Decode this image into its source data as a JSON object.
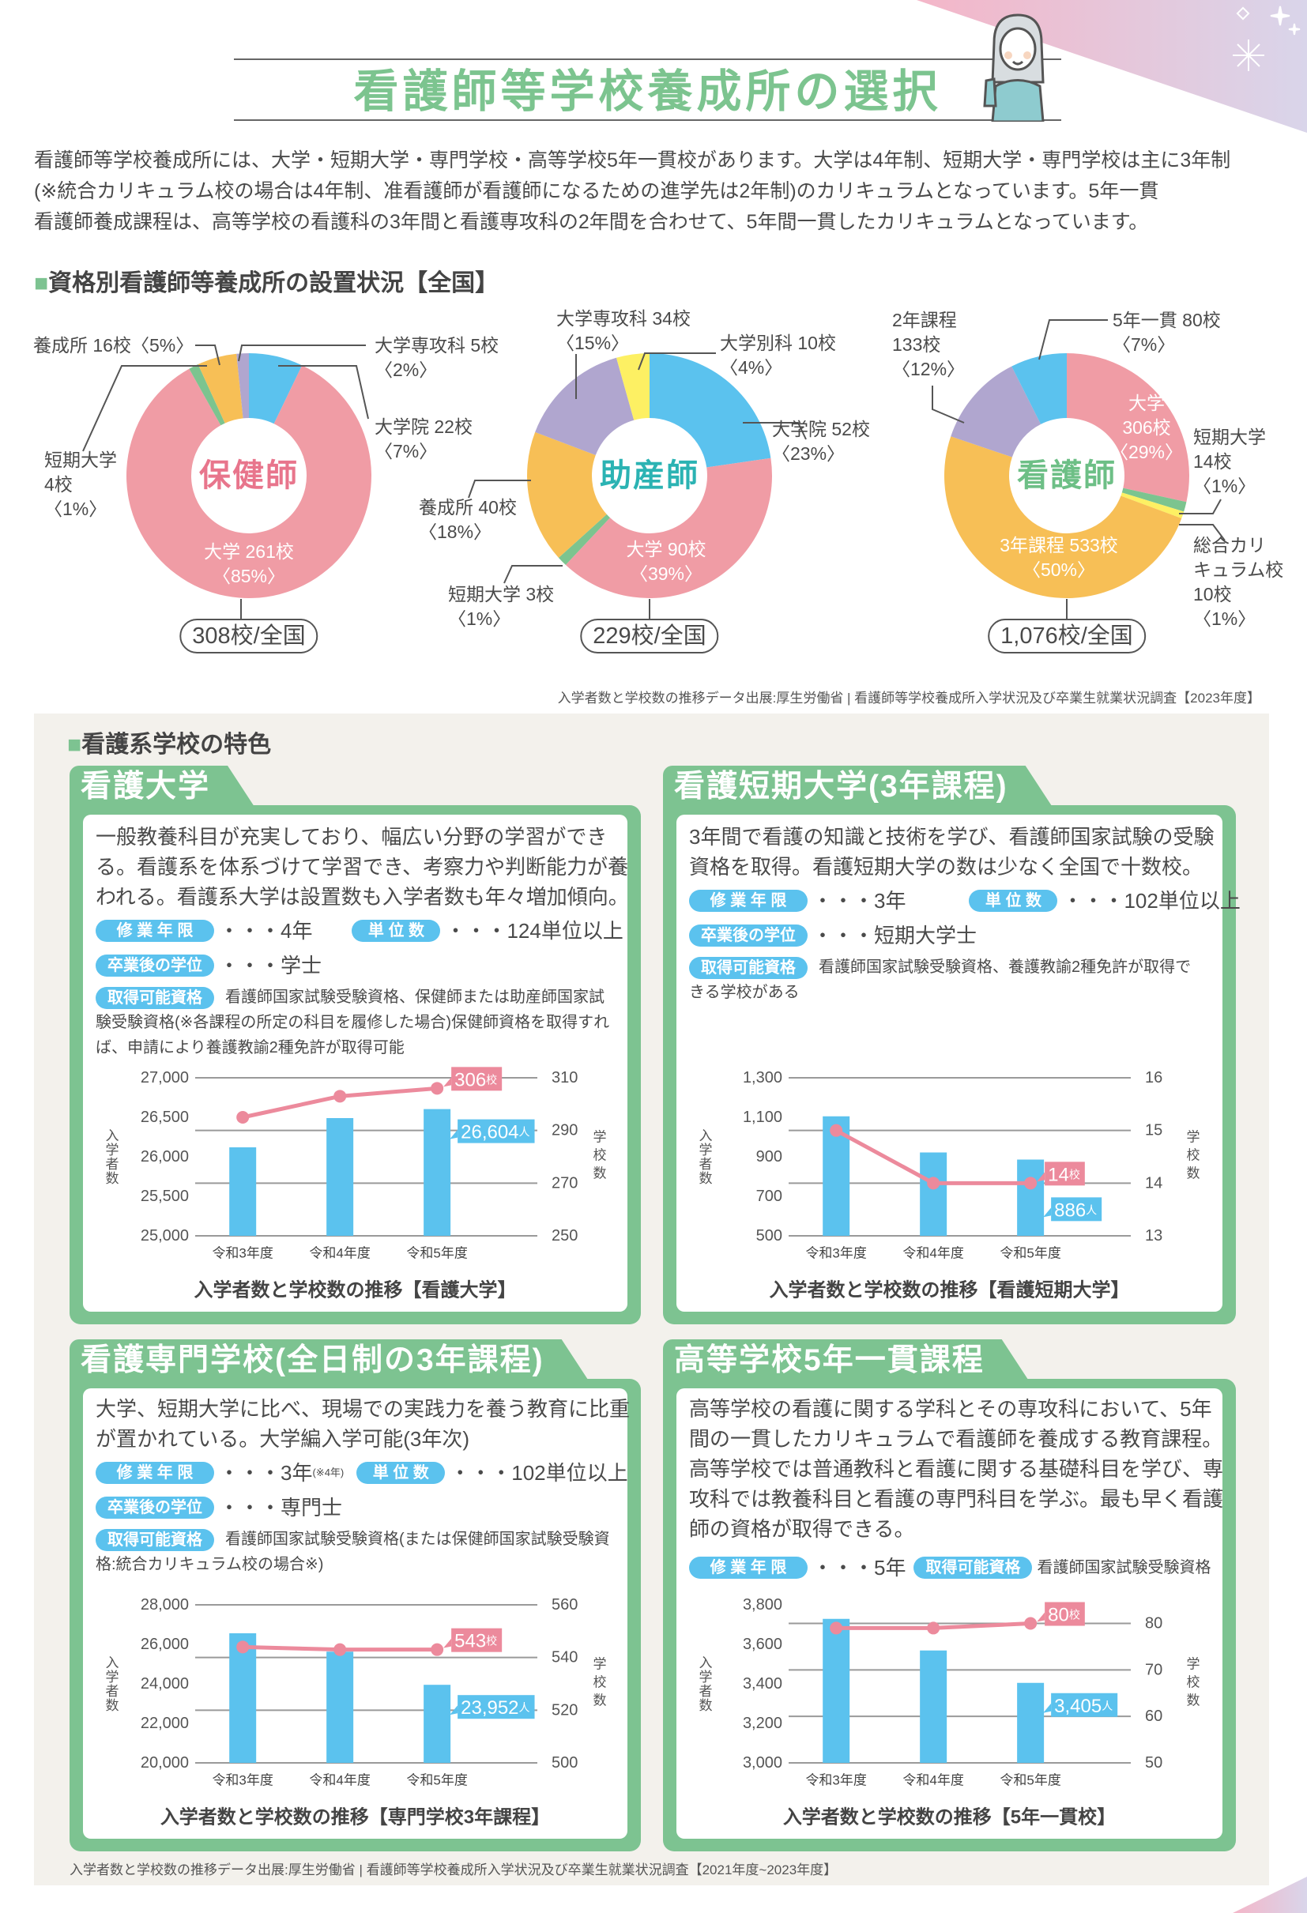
{
  "header": {
    "title": "看護師等学校養成所の選択"
  },
  "intro": {
    "lines": [
      "看護師等学校養成所には、大学・短期大学・専門学校・高等学校5年一貫校があります。大学は4年制、短期大学・専門学校は主に3年制",
      "(※統合カリキュラム校の場合は4年制、准看護師が看護師になるための進学先は2年制)のカリキュラムとなっています。5年一貫",
      "看護師養成課程は、高等学校の看護科の3年間と看護専攻科の2年間を合わせて、5年間一貫したカリキュラムとなっています。"
    ]
  },
  "section1": {
    "title": "資格別看護師等養成所の設置状況【全国】",
    "source": "入学者数と学校数の推移データ出展:厚生労働省 | 看護師等学校養成所入学状況及び卒業生就業状況調査【2023年度】"
  },
  "section2": {
    "title": "看護系学校の特色",
    "source": "入学者数と学校数の推移データ出展:厚生労働省 | 看護師等学校養成所入学状況及び卒業生就業状況調査【2021年度~2023年度】"
  },
  "colors": {
    "green": "#7dc391",
    "blue": "#5bc2ee",
    "pink_line": "#ec8a9c",
    "pie_pink": "#f09ca5",
    "orange": "#f7bf56",
    "purple": "#b0a6cf",
    "yellow": "#fdf063"
  },
  "schools": [
    {
      "title": "看護大学",
      "desc": [
        "一般教養科目が充実しており、幅広い分野の学習ができ",
        "る。看護系を体系づけて学習でき、考察力や判断能力が養",
        "われる。看護系大学は設置数も入学者数も年々増加傾向。"
      ],
      "badge_years": "修 業 年 限",
      "years": "・・・4年",
      "badge_units": "単 位 数",
      "units": "・・・124単位以上",
      "badge_degree": "卒業後の学位",
      "degree": "・・・学士",
      "badge_qual": "取得可能資格",
      "qual": "看護師国家試験受験資格、保健師または助産師国家試験受験資格(※各課程の所定の科目を履修した場合)保健師資格を取得すれば、申請により養護教諭2種免許が取得可能"
    },
    {
      "title": "看護短期大学(3年課程)",
      "desc": [
        "3年間で看護の知識と技術を学び、看護師国家試験の受験",
        "資格を取得。看護短期大学の数は少なく全国で十数校。"
      ],
      "badge_years": "修 業 年 限",
      "years": "・・・3年",
      "badge_units": "単 位 数",
      "units": "・・・102単位以上",
      "badge_degree": "卒業後の学位",
      "degree": "・・・短期大学士",
      "badge_qual": "取得可能資格",
      "qual": "看護師国家試験受験資格、養護教諭2種免許が取得できる学校がある"
    },
    {
      "title": "看護専門学校(全日制の3年課程)",
      "desc": [
        "大学、短期大学に比べ、現場での実践力を養う教育に比重",
        "が置かれている。大学編入学可能(3年次)"
      ],
      "badge_years": "修 業 年 限",
      "years": "・・・3年",
      "years_note": "(※4年)",
      "badge_units": "単 位 数",
      "units": "・・・102単位以上",
      "badge_degree": "卒業後の学位",
      "degree": "・・・専門士",
      "badge_qual": "取得可能資格",
      "qual": "看護師国家試験受験資格(または保健師国家試験受験資格:統合カリキュラム校の場合※)"
    },
    {
      "title": "高等学校5年一貫課程",
      "desc": [
        "高等学校の看護に関する学科とその専攻科において、5年",
        "間の一貫したカリキュラムで看護師を養成する教育課程。",
        "高等学校では普通教科と看護に関する基礎科目を学び、専",
        "攻科では教養科目と看護の専門科目を学ぶ。最も早く看護",
        "師の資格が取得できる。"
      ],
      "badge_years": "修 業 年 限",
      "years": "・・・5年",
      "badge_qual": "取得可能資格",
      "qual": "看護師国家試験受験資格"
    }
  ],
  "chart_data": [
    {
      "type": "pie",
      "center_label": "保健師",
      "total_label": "308校/全国",
      "total": 308,
      "slices": [
        {
          "name": "大学院",
          "value": 22,
          "label_lines": [
            "大学院 22校",
            "〈7%〉"
          ],
          "color": "#5bc2ee"
        },
        {
          "name": "大学",
          "value": 261,
          "label_lines": [
            "大学 261校",
            "〈85%〉"
          ],
          "color": "#f09ca5"
        },
        {
          "name": "短期大学",
          "value": 4,
          "label_lines": [
            "短期大学",
            "4校",
            "〈1%〉"
          ],
          "color": "#7cc48f"
        },
        {
          "name": "養成所",
          "value": 16,
          "label_lines": [
            "養成所 16校〈5%〉"
          ],
          "color": "#f7bf56"
        },
        {
          "name": "大学専攻科",
          "value": 5,
          "label_lines": [
            "大学専攻科 5校",
            "〈2%〉"
          ],
          "color": "#b0a6cf"
        }
      ]
    },
    {
      "type": "pie",
      "center_label": "助産師",
      "total_label": "229校/全国",
      "total": 229,
      "slices": [
        {
          "name": "大学院",
          "value": 52,
          "label_lines": [
            "大学院 52校",
            "〈23%〉"
          ],
          "color": "#5bc2ee"
        },
        {
          "name": "大学",
          "value": 90,
          "label_lines": [
            "大学 90校",
            "〈39%〉"
          ],
          "color": "#f09ca5"
        },
        {
          "name": "短期大学",
          "value": 3,
          "label_lines": [
            "短期大学 3校",
            "〈1%〉"
          ],
          "color": "#7cc48f"
        },
        {
          "name": "養成所",
          "value": 40,
          "label_lines": [
            "養成所 40校",
            "〈18%〉"
          ],
          "color": "#f7bf56"
        },
        {
          "name": "大学専攻科",
          "value": 34,
          "label_lines": [
            "大学専攻科 34校",
            "〈15%〉"
          ],
          "color": "#b0a6cf"
        },
        {
          "name": "大学別科",
          "value": 10,
          "label_lines": [
            "大学別科 10校",
            "〈4%〉"
          ],
          "color": "#fdf063"
        }
      ]
    },
    {
      "type": "pie",
      "center_label": "看護師",
      "total_label": "1,076校/全国",
      "total": 1076,
      "slices": [
        {
          "name": "大学",
          "value": 306,
          "label_lines": [
            "大学",
            "306校",
            "〈29%〉"
          ],
          "color": "#f09ca5"
        },
        {
          "name": "短期大学",
          "value": 14,
          "label_lines": [
            "短期大学",
            "14校",
            "〈1%〉"
          ],
          "color": "#7cc48f"
        },
        {
          "name": "総合カリキュラム校",
          "value": 10,
          "label_lines": [
            "総合カリ",
            "キュラム校",
            "10校",
            "〈1%〉"
          ],
          "color": "#fdf063"
        },
        {
          "name": "3年課程",
          "value": 533,
          "label_lines": [
            "3年課程 533校",
            "〈50%〉"
          ],
          "color": "#f7bf56"
        },
        {
          "name": "2年課程",
          "value": 133,
          "label_lines": [
            "2年課程",
            "133校",
            "〈12%〉"
          ],
          "color": "#b0a6cf"
        },
        {
          "name": "5年一貫",
          "value": 80,
          "label_lines": [
            "5年一貫 80校",
            "〈7%〉"
          ],
          "color": "#5bc2ee"
        }
      ]
    },
    {
      "type": "bar+line",
      "title": "入学者数と学校数の推移【看護大学】",
      "categories": [
        "令和3年度",
        "令和4年度",
        "令和5年度"
      ],
      "series": [
        {
          "name": "入学者数",
          "type": "bar",
          "axis": "left",
          "values": [
            26120,
            26490,
            26604
          ]
        },
        {
          "name": "学校数",
          "type": "line",
          "axis": "right",
          "values": [
            295,
            303,
            306
          ]
        }
      ],
      "ylabel": "入学者数",
      "y2label": "学校数",
      "ylim": [
        25000,
        27000
      ],
      "yticks": [
        25000,
        25500,
        26000,
        26500,
        27000
      ],
      "ytick_labels": [
        "25,000",
        "25,500",
        "26,000",
        "26,500",
        "27,000"
      ],
      "y2lim": [
        250,
        310
      ],
      "y2ticks": [
        250,
        270,
        290,
        310
      ],
      "y2tick_labels": [
        "250",
        "270",
        "290",
        "310"
      ],
      "callout_line": "306",
      "callout_line_unit": "校",
      "callout_bar": "26,604",
      "callout_bar_unit": "人"
    },
    {
      "type": "bar+line",
      "title": "入学者数と学校数の推移【看護短期大学】",
      "categories": [
        "令和3年度",
        "令和4年度",
        "令和5年度"
      ],
      "series": [
        {
          "name": "入学者数",
          "type": "bar",
          "axis": "left",
          "values": [
            1105,
            922,
            886
          ]
        },
        {
          "name": "学校数",
          "type": "line",
          "axis": "right",
          "values": [
            15,
            14,
            14
          ]
        }
      ],
      "ylabel": "入学者数",
      "y2label": "学校数",
      "ylim": [
        500,
        1300
      ],
      "yticks": [
        500,
        700,
        900,
        1100,
        1300
      ],
      "ytick_labels": [
        "500",
        "700",
        "900",
        "1,100",
        "1,300"
      ],
      "y2lim": [
        13,
        16
      ],
      "y2ticks": [
        13,
        14,
        15,
        16
      ],
      "y2tick_labels": [
        "13",
        "14",
        "15",
        "16"
      ],
      "callout_line": "14",
      "callout_line_unit": "校",
      "callout_bar": "886",
      "callout_bar_unit": "人"
    },
    {
      "type": "bar+line",
      "title": "入学者数と学校数の推移【専門学校3年課程】",
      "categories": [
        "令和3年度",
        "令和4年度",
        "令和5年度"
      ],
      "series": [
        {
          "name": "入学者数",
          "type": "bar",
          "axis": "left",
          "values": [
            26560,
            25630,
            23952
          ]
        },
        {
          "name": "学校数",
          "type": "line",
          "axis": "right",
          "values": [
            544,
            543,
            543
          ]
        }
      ],
      "ylabel": "入学者数",
      "y2label": "学校数",
      "ylim": [
        20000,
        28000
      ],
      "yticks": [
        20000,
        22000,
        24000,
        26000,
        28000
      ],
      "ytick_labels": [
        "20,000",
        "22,000",
        "24,000",
        "26,000",
        "28,000"
      ],
      "y2lim": [
        500,
        560
      ],
      "y2ticks": [
        500,
        520,
        540,
        560
      ],
      "y2tick_labels": [
        "500",
        "520",
        "540",
        "560"
      ],
      "callout_line": "543",
      "callout_line_unit": "校",
      "callout_bar": "23,952",
      "callout_bar_unit": "人"
    },
    {
      "type": "bar+line",
      "title": "入学者数と学校数の推移【5年一貫校】",
      "categories": [
        "令和3年度",
        "令和4年度",
        "令和5年度"
      ],
      "series": [
        {
          "name": "入学者数",
          "type": "bar",
          "axis": "left",
          "values": [
            3729,
            3569,
            3405
          ]
        },
        {
          "name": "学校数",
          "type": "line",
          "axis": "right",
          "values": [
            79,
            79,
            80
          ]
        }
      ],
      "ylabel": "入学者数",
      "y2label": "学校数",
      "ylim": [
        3000,
        3800
      ],
      "yticks": [
        3000,
        3200,
        3400,
        3600,
        3800
      ],
      "ytick_labels": [
        "3,000",
        "3,200",
        "3,400",
        "3,600",
        "3,800"
      ],
      "y2lim": [
        50,
        84
      ],
      "y2ticks": [
        50,
        60,
        70,
        80
      ],
      "y2tick_labels": [
        "50",
        "60",
        "70",
        "80"
      ],
      "callout_line": "80",
      "callout_line_unit": "校",
      "callout_bar": "3,405",
      "callout_bar_unit": "人"
    }
  ]
}
